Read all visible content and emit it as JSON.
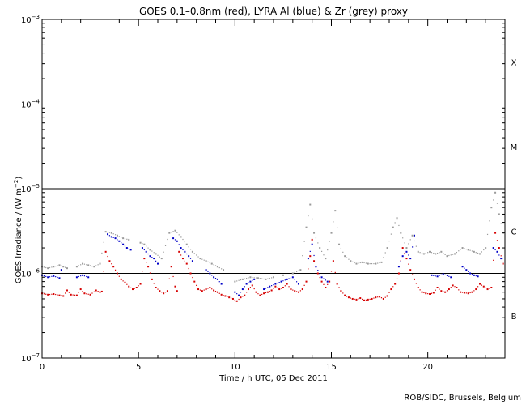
{
  "chart_data": {
    "type": "scatter",
    "title": "GOES 0.1–0.8nm (red), LYRA Al (blue) & Zr (grey) proxy",
    "xlabel": "Time / h UTC, 05 Dec 2011",
    "ylabel": "GOES Irradiance / (W m",
    "ylabel_sup": "−2",
    "ylabel_close": ")",
    "xlim": [
      0,
      24
    ],
    "ylim": [
      1e-07,
      0.001
    ],
    "yscale": "log",
    "x_ticks": [
      0,
      5,
      10,
      15,
      20
    ],
    "x_tick_labels": [
      "0",
      "5",
      "10",
      "15",
      "20"
    ],
    "y_ticks": [
      {
        "value": 1e-07,
        "base": "10",
        "exp": "−7"
      },
      {
        "value": 1e-06,
        "base": "10",
        "exp": "−6"
      },
      {
        "value": 1e-05,
        "base": "10",
        "exp": "−5"
      },
      {
        "value": 0.0001,
        "base": "10",
        "exp": "−4"
      },
      {
        "value": 0.001,
        "base": "10",
        "exp": "−3"
      }
    ],
    "flare_class_lines": [
      1e-06,
      1e-05,
      0.0001
    ],
    "flare_classes": [
      {
        "label": "X",
        "value": 0.000316
      },
      {
        "label": "M",
        "value": 3.16e-05
      },
      {
        "label": "C",
        "value": 3.16e-06
      },
      {
        "label": "B",
        "value": 3.16e-07
      }
    ],
    "series": [
      {
        "color": "#d60000",
        "points": [
          [
            0.0,
            5.8e-07
          ],
          [
            0.3,
            5.6e-07
          ],
          [
            0.6,
            5.7e-07
          ],
          [
            0.9,
            5.5e-07
          ],
          [
            1.1,
            5.4e-07
          ],
          [
            1.3,
            6.3e-07
          ],
          [
            1.5,
            5.6e-07
          ],
          [
            1.8,
            5.5e-07
          ],
          [
            2.0,
            6.5e-07
          ],
          [
            2.2,
            5.8e-07
          ],
          [
            2.5,
            5.6e-07
          ],
          [
            2.8,
            6.3e-07
          ],
          [
            3.0,
            6e-07
          ],
          [
            3.1,
            6.1e-07
          ],
          [
            3.3,
            1.8e-06
          ],
          [
            3.5,
            1.4e-06
          ],
          [
            3.7,
            1.2e-06
          ],
          [
            3.9,
            1e-06
          ],
          [
            4.1,
            8.5e-07
          ],
          [
            4.3,
            7.8e-07
          ],
          [
            4.5,
            7e-07
          ],
          [
            4.7,
            6.5e-07
          ],
          [
            4.9,
            6.8e-07
          ],
          [
            5.1,
            7.5e-07
          ],
          [
            5.3,
            1.5e-06
          ],
          [
            5.5,
            1.2e-06
          ],
          [
            5.7,
            8.5e-07
          ],
          [
            5.9,
            6.8e-07
          ],
          [
            6.1,
            6.2e-07
          ],
          [
            6.3,
            5.8e-07
          ],
          [
            6.5,
            6.2e-07
          ],
          [
            6.7,
            1.2e-06
          ],
          [
            6.9,
            7e-07
          ],
          [
            7.0,
            6.2e-07
          ],
          [
            7.1,
            1.8e-06
          ],
          [
            7.3,
            1.5e-06
          ],
          [
            7.5,
            1.3e-06
          ],
          [
            7.7,
            1e-06
          ],
          [
            7.9,
            8e-07
          ],
          [
            8.1,
            6.5e-07
          ],
          [
            8.3,
            6.2e-07
          ],
          [
            8.5,
            6.5e-07
          ],
          [
            8.7,
            6.8e-07
          ],
          [
            8.9,
            6.3e-07
          ],
          [
            9.1,
            6e-07
          ],
          [
            9.3,
            5.6e-07
          ],
          [
            9.5,
            5.4e-07
          ],
          [
            9.7,
            5.2e-07
          ],
          [
            9.9,
            5e-07
          ],
          [
            10.1,
            4.7e-07
          ],
          [
            10.3,
            5.2e-07
          ],
          [
            10.5,
            5.5e-07
          ],
          [
            10.7,
            6.5e-07
          ],
          [
            10.9,
            7.2e-07
          ],
          [
            11.1,
            6e-07
          ],
          [
            11.3,
            5.5e-07
          ],
          [
            11.5,
            5.8e-07
          ],
          [
            11.7,
            6e-07
          ],
          [
            11.9,
            6.3e-07
          ],
          [
            12.1,
            7e-07
          ],
          [
            12.3,
            6.5e-07
          ],
          [
            12.5,
            6.8e-07
          ],
          [
            12.7,
            7.5e-07
          ],
          [
            12.9,
            6.5e-07
          ],
          [
            13.1,
            6.2e-07
          ],
          [
            13.3,
            6e-07
          ],
          [
            13.5,
            6.5e-07
          ],
          [
            13.7,
            8e-07
          ],
          [
            13.9,
            1.6e-06
          ],
          [
            14.0,
            2.5e-06
          ],
          [
            14.1,
            1.4e-06
          ],
          [
            14.3,
            1e-06
          ],
          [
            14.5,
            8e-07
          ],
          [
            14.7,
            6.8e-07
          ],
          [
            14.9,
            8e-07
          ],
          [
            15.1,
            1.4e-06
          ],
          [
            15.3,
            7.5e-07
          ],
          [
            15.5,
            6.2e-07
          ],
          [
            15.7,
            5.5e-07
          ],
          [
            15.9,
            5.2e-07
          ],
          [
            16.1,
            5e-07
          ],
          [
            16.3,
            4.9e-07
          ],
          [
            16.5,
            5.1e-07
          ],
          [
            16.7,
            4.8e-07
          ],
          [
            16.9,
            4.9e-07
          ],
          [
            17.1,
            5e-07
          ],
          [
            17.3,
            5.2e-07
          ],
          [
            17.5,
            5.3e-07
          ],
          [
            17.7,
            5e-07
          ],
          [
            17.9,
            5.4e-07
          ],
          [
            18.1,
            6.5e-07
          ],
          [
            18.3,
            7.5e-07
          ],
          [
            18.5,
            1e-06
          ],
          [
            18.7,
            2e-06
          ],
          [
            18.9,
            1.5e-06
          ],
          [
            19.1,
            1.1e-06
          ],
          [
            19.3,
            8.5e-07
          ],
          [
            19.5,
            6.8e-07
          ],
          [
            19.7,
            6e-07
          ],
          [
            19.9,
            5.8e-07
          ],
          [
            20.1,
            5.7e-07
          ],
          [
            20.3,
            5.9e-07
          ],
          [
            20.5,
            6.8e-07
          ],
          [
            20.7,
            6.2e-07
          ],
          [
            20.9,
            6e-07
          ],
          [
            21.1,
            6.5e-07
          ],
          [
            21.3,
            7.2e-07
          ],
          [
            21.5,
            6.8e-07
          ],
          [
            21.7,
            6e-07
          ],
          [
            21.9,
            5.9e-07
          ],
          [
            22.1,
            5.8e-07
          ],
          [
            22.3,
            6e-07
          ],
          [
            22.5,
            6.5e-07
          ],
          [
            22.7,
            7.5e-07
          ],
          [
            22.9,
            7e-07
          ],
          [
            23.1,
            6.5e-07
          ],
          [
            23.3,
            6.8e-07
          ],
          [
            23.5,
            3e-06
          ],
          [
            23.7,
            2e-06
          ],
          [
            23.9,
            1.3e-06
          ]
        ]
      },
      {
        "color": "#0000c8",
        "points": [
          [
            0.0,
            9.5e-07
          ],
          [
            0.3,
            9e-07
          ],
          [
            0.6,
            9.3e-07
          ],
          [
            0.9,
            8.8e-07
          ],
          [
            1.0,
            1.1e-06
          ],
          [
            1.8,
            9e-07
          ],
          [
            2.1,
            9.5e-07
          ],
          [
            2.4,
            9e-07
          ],
          [
            3.4,
            2.9e-06
          ],
          [
            3.6,
            2.7e-06
          ],
          [
            3.8,
            2.6e-06
          ],
          [
            4.0,
            2.4e-06
          ],
          [
            4.2,
            2.2e-06
          ],
          [
            4.4,
            2e-06
          ],
          [
            4.6,
            1.9e-06
          ],
          [
            5.2,
            2e-06
          ],
          [
            5.4,
            1.8e-06
          ],
          [
            5.6,
            1.6e-06
          ],
          [
            5.8,
            1.5e-06
          ],
          [
            6.0,
            1.3e-06
          ],
          [
            6.8,
            2.6e-06
          ],
          [
            7.0,
            2.4e-06
          ],
          [
            7.2,
            2e-06
          ],
          [
            7.4,
            1.8e-06
          ],
          [
            7.6,
            1.6e-06
          ],
          [
            7.8,
            1.4e-06
          ],
          [
            8.5,
            1.1e-06
          ],
          [
            8.7,
            1e-06
          ],
          [
            8.9,
            9e-07
          ],
          [
            9.1,
            8.5e-07
          ],
          [
            9.3,
            7.5e-07
          ],
          [
            10.0,
            6e-07
          ],
          [
            10.2,
            5.5e-07
          ],
          [
            10.4,
            6.5e-07
          ],
          [
            10.6,
            7.5e-07
          ],
          [
            10.8,
            8e-07
          ],
          [
            11.0,
            8.5e-07
          ],
          [
            11.5,
            6.5e-07
          ],
          [
            11.8,
            7e-07
          ],
          [
            12.1,
            7.5e-07
          ],
          [
            12.4,
            8e-07
          ],
          [
            12.7,
            8.5e-07
          ],
          [
            13.0,
            9e-07
          ],
          [
            13.3,
            7.5e-07
          ],
          [
            13.8,
            1.5e-06
          ],
          [
            14.0,
            2.2e-06
          ],
          [
            14.2,
            1.2e-06
          ],
          [
            14.5,
            9e-07
          ],
          [
            14.8,
            8e-07
          ],
          [
            18.5,
            1.2e-06
          ],
          [
            18.7,
            1.6e-06
          ],
          [
            18.9,
            1.8e-06
          ],
          [
            19.1,
            1.5e-06
          ],
          [
            19.3,
            2.8e-06
          ],
          [
            20.2,
            9.5e-07
          ],
          [
            20.5,
            9.2e-07
          ],
          [
            20.8,
            9.8e-07
          ],
          [
            21.2,
            9e-07
          ],
          [
            21.8,
            1.2e-06
          ],
          [
            22.0,
            1.1e-06
          ],
          [
            22.2,
            1e-06
          ],
          [
            22.4,
            9.5e-07
          ],
          [
            22.6,
            9.2e-07
          ],
          [
            23.4,
            2e-06
          ],
          [
            23.6,
            1.8e-06
          ],
          [
            23.8,
            1.5e-06
          ]
        ]
      },
      {
        "color": "#9a9a9a",
        "points": [
          [
            0.0,
            1.2e-06
          ],
          [
            0.3,
            1.15e-06
          ],
          [
            0.6,
            1.2e-06
          ],
          [
            0.9,
            1.25e-06
          ],
          [
            1.1,
            1.2e-06
          ],
          [
            1.3,
            1.15e-06
          ],
          [
            1.8,
            1.2e-06
          ],
          [
            2.1,
            1.3e-06
          ],
          [
            2.4,
            1.25e-06
          ],
          [
            2.7,
            1.2e-06
          ],
          [
            3.0,
            1.3e-06
          ],
          [
            3.3,
            3.1e-06
          ],
          [
            3.6,
            3e-06
          ],
          [
            3.9,
            2.8e-06
          ],
          [
            4.2,
            2.6e-06
          ],
          [
            4.5,
            2.5e-06
          ],
          [
            5.1,
            2.3e-06
          ],
          [
            5.3,
            2.2e-06
          ],
          [
            5.6,
            1.9e-06
          ],
          [
            5.9,
            1.7e-06
          ],
          [
            6.2,
            1.5e-06
          ],
          [
            6.6,
            3e-06
          ],
          [
            6.9,
            3.2e-06
          ],
          [
            7.2,
            2.7e-06
          ],
          [
            7.5,
            2.2e-06
          ],
          [
            7.8,
            1.8e-06
          ],
          [
            8.2,
            1.5e-06
          ],
          [
            8.5,
            1.4e-06
          ],
          [
            8.8,
            1.3e-06
          ],
          [
            9.1,
            1.2e-06
          ],
          [
            9.4,
            1.1e-06
          ],
          [
            10.0,
            8e-07
          ],
          [
            10.4,
            8.5e-07
          ],
          [
            10.8,
            9e-07
          ],
          [
            11.2,
            8.8e-07
          ],
          [
            11.6,
            8.5e-07
          ],
          [
            12.0,
            9e-07
          ],
          [
            12.5,
            9.5e-07
          ],
          [
            13.0,
            1e-06
          ],
          [
            13.4,
            1.1e-06
          ],
          [
            13.7,
            3.5e-06
          ],
          [
            13.9,
            6.5e-06
          ],
          [
            14.1,
            3e-06
          ],
          [
            14.4,
            2e-06
          ],
          [
            14.7,
            1.5e-06
          ],
          [
            15.0,
            3e-06
          ],
          [
            15.2,
            5.5e-06
          ],
          [
            15.4,
            2.2e-06
          ],
          [
            15.7,
            1.6e-06
          ],
          [
            16.0,
            1.4e-06
          ],
          [
            16.3,
            1.3e-06
          ],
          [
            16.6,
            1.35e-06
          ],
          [
            16.9,
            1.3e-06
          ],
          [
            17.3,
            1.3e-06
          ],
          [
            17.6,
            1.35e-06
          ],
          [
            17.9,
            2e-06
          ],
          [
            18.2,
            3.5e-06
          ],
          [
            18.4,
            4.5e-06
          ],
          [
            18.6,
            3e-06
          ],
          [
            18.9,
            2e-06
          ],
          [
            19.2,
            2.8e-06
          ],
          [
            19.5,
            1.8e-06
          ],
          [
            19.8,
            1.7e-06
          ],
          [
            20.1,
            1.8e-06
          ],
          [
            20.4,
            1.7e-06
          ],
          [
            20.7,
            1.8e-06
          ],
          [
            21.0,
            1.6e-06
          ],
          [
            21.4,
            1.7e-06
          ],
          [
            21.8,
            2e-06
          ],
          [
            22.1,
            1.9e-06
          ],
          [
            22.4,
            1.8e-06
          ],
          [
            22.7,
            1.7e-06
          ],
          [
            23.0,
            2e-06
          ],
          [
            23.3,
            6e-06
          ],
          [
            23.5,
            9e-06
          ],
          [
            23.7,
            5e-06
          ],
          [
            23.9,
            3e-06
          ]
        ]
      }
    ]
  },
  "footer": {
    "credit": "ROB/SIDC, Brussels, Belgium"
  }
}
